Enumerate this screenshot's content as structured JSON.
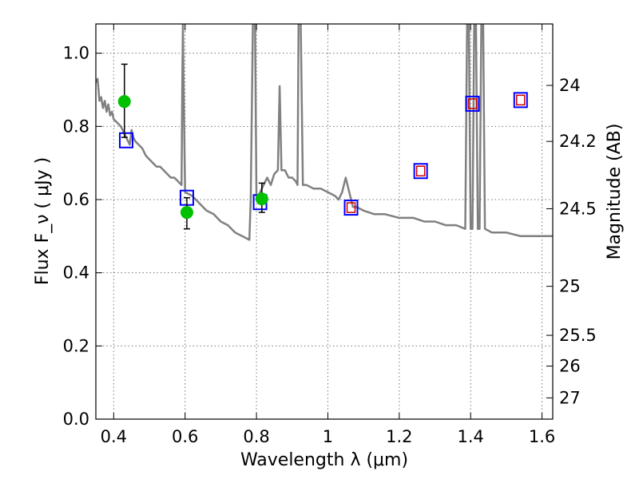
{
  "chart_data": {
    "type": "scatter",
    "xlabel": "Wavelength  λ (μm)",
    "ylabel": "Flux  F_ν  ( μJy )",
    "y2label": "Magnitude (AB)",
    "xlim": [
      0.35,
      1.63
    ],
    "ylim": [
      0.0,
      1.08
    ],
    "grid": true,
    "colors": {
      "template": "#808080",
      "observed": "#00c000",
      "model_box": "#0000ff",
      "model_inner": "#d00000",
      "errorbar": "#000000"
    },
    "x_ticks": [
      {
        "v": 0.4,
        "label": "0.4"
      },
      {
        "v": 0.6,
        "label": "0.6"
      },
      {
        "v": 0.8,
        "label": "0.8"
      },
      {
        "v": 1.0,
        "label": "1"
      },
      {
        "v": 1.2,
        "label": "1.2"
      },
      {
        "v": 1.4,
        "label": "1.4"
      },
      {
        "v": 1.6,
        "label": "1.6"
      }
    ],
    "y_ticks": [
      {
        "v": 0.0,
        "label": "0.0"
      },
      {
        "v": 0.2,
        "label": "0.2"
      },
      {
        "v": 0.4,
        "label": "0.4"
      },
      {
        "v": 0.6,
        "label": "0.6"
      },
      {
        "v": 0.8,
        "label": "0.8"
      },
      {
        "v": 1.0,
        "label": "1.0"
      }
    ],
    "y2_ticks": [
      {
        "flux": 0.912,
        "label": "24"
      },
      {
        "flux": 0.759,
        "label": "24.2"
      },
      {
        "flux": 0.575,
        "label": "24.5"
      },
      {
        "flux": 0.363,
        "label": "25"
      },
      {
        "flux": 0.229,
        "label": "25.5"
      },
      {
        "flux": 0.145,
        "label": "26"
      },
      {
        "flux": 0.058,
        "label": "27"
      }
    ],
    "template_spectrum": [
      [
        0.35,
        0.92
      ],
      [
        0.355,
        0.93
      ],
      [
        0.36,
        0.87
      ],
      [
        0.365,
        0.88
      ],
      [
        0.37,
        0.85
      ],
      [
        0.375,
        0.87
      ],
      [
        0.38,
        0.84
      ],
      [
        0.385,
        0.86
      ],
      [
        0.39,
        0.83
      ],
      [
        0.395,
        0.84
      ],
      [
        0.4,
        0.82
      ],
      [
        0.41,
        0.81
      ],
      [
        0.42,
        0.8
      ],
      [
        0.43,
        0.78
      ],
      [
        0.44,
        0.76
      ],
      [
        0.445,
        0.75
      ],
      [
        0.45,
        0.79
      ],
      [
        0.455,
        0.77
      ],
      [
        0.46,
        0.76
      ],
      [
        0.47,
        0.75
      ],
      [
        0.48,
        0.74
      ],
      [
        0.49,
        0.72
      ],
      [
        0.5,
        0.71
      ],
      [
        0.51,
        0.7
      ],
      [
        0.52,
        0.69
      ],
      [
        0.53,
        0.69
      ],
      [
        0.54,
        0.68
      ],
      [
        0.55,
        0.67
      ],
      [
        0.56,
        0.66
      ],
      [
        0.57,
        0.66
      ],
      [
        0.58,
        0.65
      ],
      [
        0.59,
        0.64
      ],
      [
        0.592,
        0.9
      ],
      [
        0.594,
        1.08
      ],
      [
        0.596,
        0.9
      ],
      [
        0.6,
        0.62
      ],
      [
        0.62,
        0.61
      ],
      [
        0.64,
        0.59
      ],
      [
        0.66,
        0.57
      ],
      [
        0.68,
        0.56
      ],
      [
        0.7,
        0.54
      ],
      [
        0.72,
        0.53
      ],
      [
        0.74,
        0.51
      ],
      [
        0.76,
        0.5
      ],
      [
        0.78,
        0.49
      ],
      [
        0.784,
        0.6
      ],
      [
        0.79,
        1.08
      ],
      [
        0.796,
        1.08
      ],
      [
        0.8,
        0.6
      ],
      [
        0.81,
        0.62
      ],
      [
        0.82,
        0.64
      ],
      [
        0.83,
        0.66
      ],
      [
        0.84,
        0.64
      ],
      [
        0.85,
        0.67
      ],
      [
        0.86,
        0.68
      ],
      [
        0.865,
        0.91
      ],
      [
        0.87,
        0.68
      ],
      [
        0.88,
        0.68
      ],
      [
        0.89,
        0.66
      ],
      [
        0.9,
        0.66
      ],
      [
        0.91,
        0.65
      ],
      [
        0.915,
        0.64
      ],
      [
        0.918,
        1.08
      ],
      [
        0.924,
        1.08
      ],
      [
        0.93,
        0.64
      ],
      [
        0.94,
        0.64
      ],
      [
        0.96,
        0.63
      ],
      [
        0.98,
        0.63
      ],
      [
        1.0,
        0.62
      ],
      [
        1.02,
        0.61
      ],
      [
        1.03,
        0.6
      ],
      [
        1.04,
        0.62
      ],
      [
        1.05,
        0.66
      ],
      [
        1.06,
        0.62
      ],
      [
        1.07,
        0.58
      ],
      [
        1.08,
        0.58
      ],
      [
        1.1,
        0.57
      ],
      [
        1.13,
        0.56
      ],
      [
        1.16,
        0.56
      ],
      [
        1.2,
        0.55
      ],
      [
        1.24,
        0.55
      ],
      [
        1.27,
        0.54
      ],
      [
        1.3,
        0.54
      ],
      [
        1.33,
        0.53
      ],
      [
        1.36,
        0.53
      ],
      [
        1.385,
        0.52
      ],
      [
        1.39,
        1.08
      ],
      [
        1.395,
        1.08
      ],
      [
        1.4,
        0.52
      ],
      [
        1.405,
        0.52
      ],
      [
        1.41,
        1.08
      ],
      [
        1.415,
        1.08
      ],
      [
        1.42,
        0.52
      ],
      [
        1.425,
        0.52
      ],
      [
        1.43,
        1.08
      ],
      [
        1.435,
        1.08
      ],
      [
        1.44,
        0.52
      ],
      [
        1.46,
        0.51
      ],
      [
        1.5,
        0.51
      ],
      [
        1.54,
        0.5
      ],
      [
        1.58,
        0.5
      ],
      [
        1.63,
        0.5
      ]
    ],
    "observed_points": [
      {
        "x": 0.43,
        "y": 0.868,
        "ylow": 0.77,
        "yhigh": 0.97
      },
      {
        "x": 0.605,
        "y": 0.565,
        "ylow": 0.52,
        "yhigh": 0.605
      },
      {
        "x": 0.815,
        "y": 0.602,
        "ylow": 0.565,
        "yhigh": 0.645
      }
    ],
    "model_points": [
      {
        "x": 0.435,
        "y": 0.762,
        "inner": false
      },
      {
        "x": 0.605,
        "y": 0.605,
        "inner": false
      },
      {
        "x": 0.81,
        "y": 0.593,
        "inner": false
      },
      {
        "x": 1.065,
        "y": 0.578,
        "inner": true
      },
      {
        "x": 1.26,
        "y": 0.678,
        "inner": true
      },
      {
        "x": 1.405,
        "y": 0.862,
        "inner": true
      },
      {
        "x": 1.54,
        "y": 0.872,
        "inner": true
      }
    ]
  }
}
